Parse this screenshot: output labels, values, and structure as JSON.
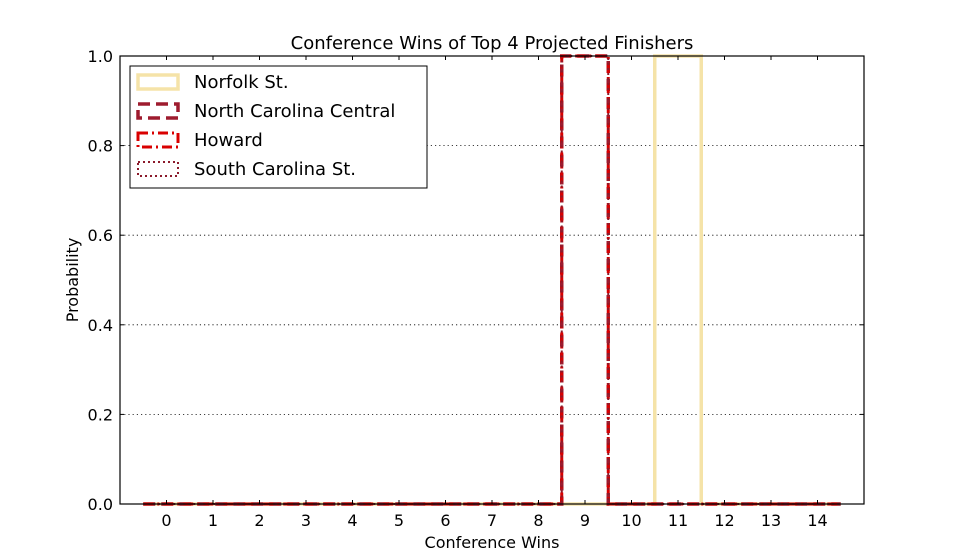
{
  "chart_data": {
    "type": "step",
    "title": "Conference Wins of Top 4 Projected Finishers",
    "xlabel": "Conference Wins",
    "ylabel": "Probability",
    "xlim": [
      -1,
      15
    ],
    "ylim": [
      0,
      1.0
    ],
    "xticks": [
      0,
      1,
      2,
      3,
      4,
      5,
      6,
      7,
      8,
      9,
      10,
      11,
      12,
      13,
      14
    ],
    "xtick_labels": [
      "0",
      "1",
      "2",
      "3",
      "4",
      "5",
      "6",
      "7",
      "8",
      "9",
      "10",
      "11",
      "12",
      "13",
      "14"
    ],
    "yticks": [
      0.0,
      0.2,
      0.4,
      0.6,
      0.8,
      1.0
    ],
    "ytick_labels": [
      "0.0",
      "0.2",
      "0.4",
      "0.6",
      "0.8",
      "1.0"
    ],
    "grid": "horizontal dotted",
    "legend_position": "top-left",
    "series": [
      {
        "name": "Norfolk St.",
        "color": "#f5e3a8",
        "linestyle": "solid",
        "x": [
          0,
          1,
          2,
          3,
          4,
          5,
          6,
          7,
          8,
          9,
          10,
          11,
          12,
          13,
          14
        ],
        "values": [
          0,
          0,
          0,
          0,
          0,
          0,
          0,
          0,
          0,
          0,
          0,
          1.0,
          0,
          0,
          0
        ]
      },
      {
        "name": "North Carolina Central",
        "color": "#9e1b2e",
        "linestyle": "dashed",
        "x": [
          0,
          1,
          2,
          3,
          4,
          5,
          6,
          7,
          8,
          9,
          10,
          11,
          12,
          13,
          14
        ],
        "values": [
          0,
          0,
          0,
          0,
          0,
          0,
          0,
          0,
          0,
          1.0,
          0,
          0,
          0,
          0,
          0
        ]
      },
      {
        "name": "Howard",
        "color": "#d90000",
        "linestyle": "dashdot",
        "x": [
          0,
          1,
          2,
          3,
          4,
          5,
          6,
          7,
          8,
          9,
          10,
          11,
          12,
          13,
          14
        ],
        "values": [
          0,
          0,
          0,
          0,
          0,
          0,
          0,
          0,
          0,
          1.0,
          0,
          0,
          0,
          0,
          0
        ]
      },
      {
        "name": "South Carolina St.",
        "color": "#8b1a2b",
        "linestyle": "dotted",
        "x": [
          0,
          1,
          2,
          3,
          4,
          5,
          6,
          7,
          8,
          9,
          10,
          11,
          12,
          13,
          14
        ],
        "values": [
          0,
          0,
          0,
          0,
          0,
          0,
          0,
          0,
          0,
          1.0,
          0,
          0,
          0,
          0,
          0
        ]
      }
    ]
  }
}
